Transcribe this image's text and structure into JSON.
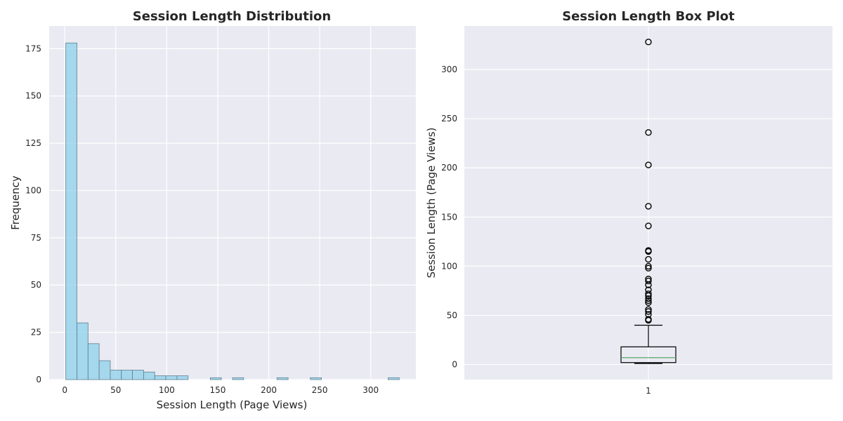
{
  "chart_data": [
    {
      "type": "bar",
      "title": "Session Length Distribution",
      "xlabel": "Session Length (Page Views)",
      "ylabel": "Frequency",
      "xlim": [
        -15.3,
        344.3
      ],
      "ylim": [
        0,
        187
      ],
      "xticks": [
        0,
        50,
        100,
        150,
        200,
        250,
        300
      ],
      "yticks": [
        0,
        25,
        50,
        75,
        100,
        125,
        150,
        175
      ],
      "bin_width": 10.9,
      "bin_start": 1,
      "values": [
        178,
        30,
        19,
        10,
        5,
        5,
        5,
        4,
        2,
        2,
        2,
        0,
        0,
        1,
        0,
        1,
        0,
        0,
        0,
        1,
        0,
        0,
        1,
        0,
        0,
        0,
        0,
        0,
        0,
        1
      ],
      "bar_color": "#87ceeb",
      "edge_color": "#5f7f8f",
      "grid": true,
      "background": "#eaeaf2"
    },
    {
      "type": "box",
      "title": "Session Length Box Plot",
      "xlabel": "",
      "ylabel": "Session Length (Page Views)",
      "ylim": [
        -15.3,
        344.3
      ],
      "yticks": [
        0,
        50,
        100,
        150,
        200,
        250,
        300
      ],
      "categories": [
        "1"
      ],
      "box": {
        "whisker_low": 1,
        "q1": 2,
        "median": 7,
        "q3": 18,
        "whisker_high": 40
      },
      "outliers": [
        328,
        236,
        203,
        161,
        141,
        116,
        115,
        107,
        100,
        98,
        87,
        85,
        81,
        76,
        72,
        70,
        67,
        65,
        63,
        56,
        54,
        51,
        46,
        45
      ],
      "median_color": "#55a868",
      "grid": true,
      "background": "#eaeaf2"
    }
  ]
}
